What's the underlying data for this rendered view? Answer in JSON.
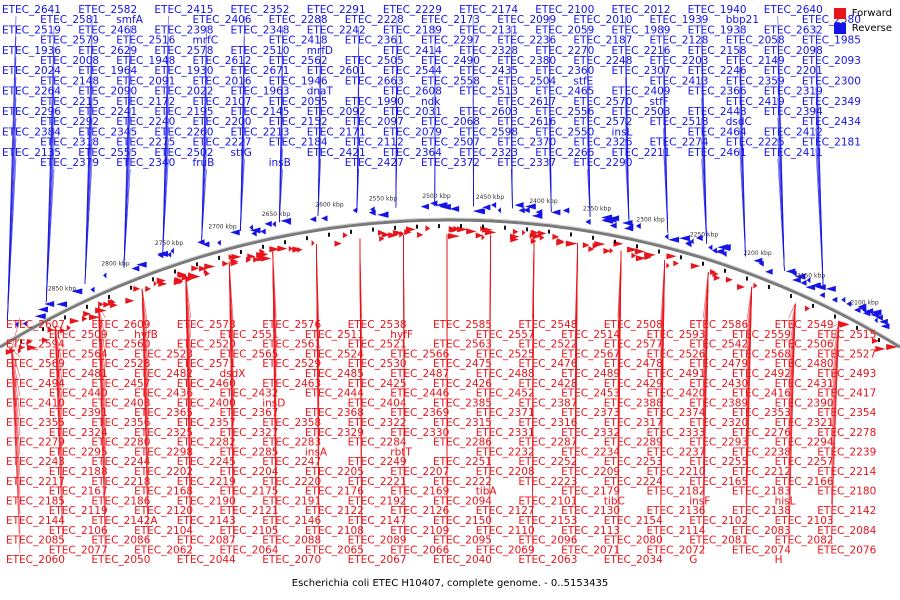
{
  "caption": "Escherichia coli ETEC H10407, complete genome. - 0..5153435",
  "legend": {
    "forward_label": "Forward",
    "reverse_label": "Reverse",
    "forward_color": "#e8141b",
    "reverse_color": "#1414e6"
  },
  "backbone": {
    "line_color": "#7a7a7a",
    "tick_labels": [
      "2850 kbp",
      "2800 kbp",
      "2750 kbp",
      "2700 kbp",
      "2650 kbp",
      "2600 kbp",
      "2550 kbp",
      "2500 kbp",
      "2450 kbp",
      "2400 kbp",
      "2350 kbp",
      "2300 kbp",
      "2250 kbp",
      "2200 kbp",
      "2150 kbp",
      "2100 kbp"
    ]
  },
  "reverse_labels": [
    "ETEC_2641",
    "ETEC_2582",
    "ETEC_2415",
    "ETEC_2352",
    "ETEC_2291",
    "ETEC_2229",
    "ETEC_2174",
    "ETEC_2100",
    "ETEC_2012",
    "ETEC_1940",
    "ETEC_2640",
    "ETEC_2581",
    "smfA",
    "ETEC_2406",
    "ETEC_2288",
    "ETEC_2228",
    "ETEC_2173",
    "ETEC_2099",
    "ETEC_2010",
    "ETEC_1939",
    "bbp21",
    "ETEC_2580",
    "ETEC_2519",
    "ETEC_2468",
    "ETEC_2398",
    "ETEC_2348",
    "ETEC_2242",
    "ETEC_2189",
    "ETEC_2131",
    "ETEC_2059",
    "ETEC_1989",
    "ETEC_1938",
    "ETEC_2632",
    "ETEC_2579",
    "ETEC_2516",
    "mrfC",
    "ETEC_2418",
    "ETEC_2361",
    "ETEC_2297",
    "ETEC_2236",
    "ETEC_2187",
    "ETEC_2128",
    "ETEC_2058",
    "ETEC_1985",
    "ETEC_1936",
    "ETEC_2629",
    "ETEC_2578",
    "ETEC_2510",
    "mrfD",
    "ETEC_2414",
    "ETEC_2328",
    "ETEC_2270",
    "ETEC_2216",
    "ETEC_2158",
    "ETEC_2098",
    "ETEC_2008",
    "ETEC_1948",
    "ETEC_2612",
    "ETEC_2562",
    "ETEC_2505",
    "ETEC_2490",
    "ETEC_2380",
    "ETEC_2248",
    "ETEC_2203",
    "ETEC_2149",
    "ETEC_2093",
    "ETEC_2024",
    "ETEC_1964",
    "ETEC_1930",
    "ETEC_2671",
    "ETEC_2601",
    "ETEC_2544",
    "ETEC_2435",
    "ETEC_2360",
    "ETEC_2307",
    "ETEC_2246",
    "ETEC_2201",
    "ETEC_2148",
    "ETEC_2091",
    "ETEC_2016",
    "ETEC_1946",
    "ETEC_2663",
    "ETEC_2558",
    "ETEC_2504",
    "stfE",
    "ETEC_2413",
    "ETEC_2359",
    "ETEC_2300",
    "ETEC_2264",
    "ETEC_2090",
    "ETEC_2022",
    "ETEC_1963",
    "dnaT",
    "ETEC_2608",
    "ETEC_2513",
    "ETEC_2465",
    "ETEC_2409",
    "ETEC_2366",
    "ETEC_2319",
    "ETEC_2215",
    "ETEC_2172",
    "ETEC_2107",
    "ETEC_2055",
    "ETEC_1990",
    "ndk",
    "ETEC_2617",
    "ETEC_2570",
    "stfF",
    "ETEC_2419",
    "ETEC_2349",
    "ETEC_2296",
    "ETEC_2241",
    "ETEC_2195",
    "ETEC_2145",
    "ETEC_2092",
    "ETEC_2031",
    "ETEC_2603",
    "ETEC_2556",
    "ETEC_2503",
    "ETEC_2448",
    "ETEC_2394",
    "ETEC_2292",
    "ETEC_2240",
    "ETEC_2200",
    "ETEC_2152",
    "ETEC_2097",
    "ETEC_2068",
    "ETEC_2616",
    "ETEC_2572",
    "ETEC_2518",
    "dsdC",
    "ETEC_2434",
    "ETEC_2384",
    "ETEC_2345",
    "ETEC_2260",
    "ETEC_2213",
    "ETEC_2171",
    "ETEC_2079",
    "ETEC_2598",
    "ETEC_2550",
    "insL",
    "ETEC_2464",
    "ETEC_2412",
    "ETEC_2318",
    "ETEC_2275",
    "ETEC_2227",
    "ETEC_2184",
    "ETEC_2112",
    "ETEC_2507",
    "ETEC_2370",
    "ETEC_2326",
    "ETEC_2274",
    "ETEC_2225",
    "ETEC_2181",
    "ETEC_2135",
    "ETEC_2555",
    "ETEC_2502",
    "stfG",
    "ETEC_2421",
    "ETEC_2364",
    "ETEC_2323",
    "ETEC_2266",
    "ETEC_2211",
    "ETEC_2461",
    "ETEC_2411",
    "ETEC_2379",
    "ETEC_2340",
    "fruB",
    "insB",
    "ETEC_2427",
    "ETEC_2372",
    "ETEC_2337",
    "ETEC_2290"
  ],
  "forward_labels": [
    "ETEC_2607",
    "ETEC_2609",
    "ETEC_2573",
    "ETEC_2576",
    "ETEC_2538",
    "ETEC_2585",
    "ETEC_2548",
    "ETEC_2508",
    "ETEC_2586",
    "ETEC_2549",
    "ETEC_2509",
    "hyfB",
    "ETEC_2551",
    "ETEC_2511",
    "hyfF",
    "ETEC_2557",
    "ETEC_2514",
    "ETEC_2593",
    "ETEC_2559",
    "ETEC_2515",
    "ETEC_2594",
    "ETEC_2560",
    "ETEC_2520",
    "ETEC_2561",
    "ETEC_2521",
    "ETEC_2563",
    "ETEC_2522",
    "ETEC_2577",
    "ETEC_2542",
    "ETEC_2506",
    "ETEC_2564",
    "ETEC_2523",
    "ETEC_2565",
    "ETEC_2524",
    "ETEC_2566",
    "ETEC_2525",
    "ETEC_2567",
    "ETEC_2526",
    "ETEC_2568",
    "ETEC_2527",
    "ETEC_2569",
    "ETEC_2528",
    "ETEC_2571",
    "ETEC_2529",
    "ETEC_2530",
    "ETEC_2475",
    "ETEC_2476",
    "ETEC_2478",
    "ETEC_2479",
    "ETEC_2480",
    "ETEC_2481",
    "ETEC_2482",
    "dsdX",
    "ETEC_2485",
    "ETEC_2487",
    "ETEC_2488",
    "ETEC_2489",
    "ETEC_2491",
    "ETEC_2492",
    "ETEC_2493",
    "ETEC_2494",
    "ETEC_2457",
    "ETEC_2460",
    "ETEC_2463",
    "ETEC_2425",
    "ETEC_2426",
    "ETEC_2428",
    "ETEC_2429",
    "ETEC_2430",
    "ETEC_2431",
    "ETEC_2440",
    "ETEC_2436",
    "ETEC_2432",
    "ETEC_2444",
    "ETEC_2446",
    "ETEC_2452",
    "ETEC_2453",
    "ETEC_2420",
    "ETEC_2416",
    "ETEC_2417",
    "ETEC_2410",
    "ETEC_2408",
    "ETEC_2400",
    "insD",
    "ETEC_2404",
    "ETEC_2385",
    "ETEC_2387",
    "ETEC_2388",
    "ETEC_2389",
    "ETEC_2390",
    "ETEC_2391",
    "ETEC_2365",
    "ETEC_2367",
    "ETEC_2368",
    "ETEC_2369",
    "ETEC_2371",
    "ETEC_2373",
    "ETEC_2374",
    "ETEC_2353",
    "ETEC_2354",
    "ETEC_2355",
    "ETEC_2356",
    "ETEC_2357",
    "ETEC_2358",
    "ETEC_2322",
    "ETEC_2315",
    "ETEC_2316",
    "ETEC_2317",
    "ETEC_2320",
    "ETEC_2321",
    "ETEC_2324",
    "ETEC_2325",
    "ETEC_2327",
    "ETEC_2329",
    "ETEC_2330",
    "ETEC_2331",
    "ETEC_2332",
    "ETEC_2333",
    "ETEC_2276",
    "ETEC_2278",
    "ETEC_2279",
    "ETEC_2280",
    "ETEC_2282",
    "ETEC_2283",
    "ETEC_2284",
    "ETEC_2286",
    "ETEC_2287",
    "ETEC_2289",
    "ETEC_2293",
    "ETEC_2294",
    "ETEC_2295",
    "ETEC_2298",
    "ETEC_2285",
    "insA",
    "rbtT",
    "ETEC_2232",
    "ETEC_2234",
    "ETEC_2237",
    "ETEC_2238",
    "ETEC_2239",
    "ETEC_2243",
    "ETEC_2244",
    "ETEC_2245",
    "ETEC_2247",
    "ETEC_2249",
    "ETEC_2251",
    "ETEC_2252",
    "ETEC_2253",
    "ETEC_2255",
    "ETEC_2257",
    "ETEC_2188",
    "ETEC_2202",
    "ETEC_2204",
    "ETEC_2205",
    "ETEC_2207",
    "ETEC_2208",
    "ETEC_2209",
    "ETEC_2210",
    "ETEC_2212",
    "ETEC_2214",
    "ETEC_2217",
    "ETEC_2218",
    "ETEC_2219",
    "ETEC_2220",
    "ETEC_2221",
    "ETEC_2222",
    "ETEC_2223",
    "ETEC_2224",
    "ETEC_2165",
    "ETEC_2166",
    "ETEC_2167",
    "ETEC_2168",
    "ETEC_2175",
    "ETEC_2176",
    "ETEC_2169",
    "tibA",
    "ETEC_2179",
    "ETEC_2182",
    "ETEC_2183",
    "ETEC_2180",
    "ETEC_2185",
    "ETEC_2186",
    "ETEC_2190",
    "ETEC_2191",
    "ETEC_2192",
    "ETEC_2094",
    "ETEC_2101",
    "tibC",
    "insF",
    "hisL",
    "ETEC_2119",
    "ETEC_2120",
    "ETEC_2121",
    "ETEC_2122",
    "ETEC_2126",
    "ETEC_2127",
    "ETEC_2130",
    "ETEC_2136",
    "ETEC_2138",
    "ETEC_2142",
    "ETEC_2144",
    "ETEC_2142A",
    "ETEC_2143",
    "ETEC_2146",
    "ETEC_2147",
    "ETEC_2150",
    "ETEC_2153",
    "ETEC_2154",
    "ETEC_2102",
    "ETEC_2103",
    "ETEC_2106",
    "ETEC_2104",
    "ETEC_2105",
    "ETEC_2108",
    "ETEC_2109",
    "ETEC_2110",
    "ETEC_2113",
    "ETEC_2114",
    "ETEC_2083",
    "ETEC_2084",
    "ETEC_2085",
    "ETEC_2086",
    "ETEC_2087",
    "ETEC_2088",
    "ETEC_2089",
    "ETEC_2095",
    "ETEC_2096",
    "ETEC_2080",
    "ETEC_2081",
    "ETEC_2082",
    "ETEC_2077",
    "ETEC_2062",
    "ETEC_2064",
    "ETEC_2065",
    "ETEC_2066",
    "ETEC_2069",
    "ETEC_2071",
    "ETEC_2072",
    "ETEC_2074",
    "ETEC_2076",
    "ETEC_2060",
    "ETEC_2050",
    "ETEC_2044",
    "ETEC_2070",
    "ETEC_2067",
    "ETEC_2040",
    "ETEC_2063",
    "ETEC_2034",
    "G",
    "H"
  ]
}
